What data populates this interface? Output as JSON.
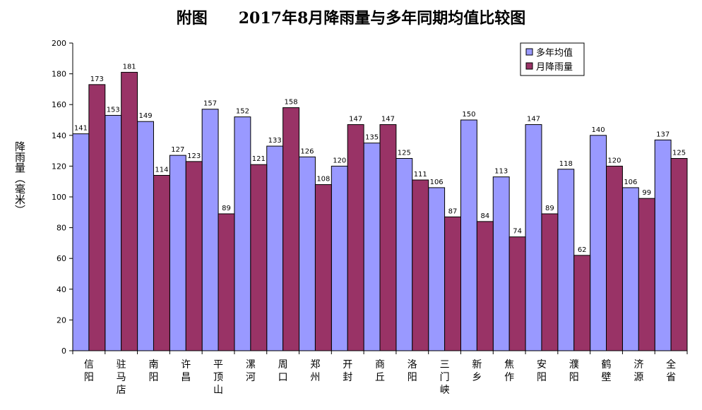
{
  "title": "附图　　2017年8月降雨量与多年同期均值比较图",
  "ylabel": "降雨量（毫米）",
  "legend": [
    "多年均值",
    "月降雨量"
  ],
  "colors": {
    "avg": "#9999ff",
    "month": "#993366",
    "bar_stroke": "#000000"
  },
  "chart_data": {
    "type": "bar",
    "title": "附图　　2017年8月降雨量与多年同期均值比较图",
    "ylabel": "降雨量（毫米）",
    "xlabel": "",
    "ylim": [
      0,
      200
    ],
    "yticks": [
      0,
      20,
      40,
      60,
      80,
      100,
      120,
      140,
      160,
      180,
      200
    ],
    "grid": false,
    "legend_position": "top-right",
    "categories": [
      "信阳",
      "驻马店",
      "南阳",
      "许昌",
      "平顶山",
      "漯河",
      "周口",
      "郑州",
      "开封",
      "商丘",
      "洛阳",
      "三门峡",
      "新乡",
      "焦作",
      "安阳",
      "濮阳",
      "鹤壁",
      "济源",
      "全省"
    ],
    "series": [
      {
        "name": "多年均值",
        "color": "#9999ff",
        "values": [
          141,
          153,
          149,
          127,
          157,
          152,
          133,
          126,
          120,
          135,
          125,
          106,
          150,
          113,
          147,
          118,
          140,
          106,
          137
        ]
      },
      {
        "name": "月降雨量",
        "color": "#993366",
        "values": [
          173,
          181,
          114,
          123,
          89,
          121,
          158,
          108,
          147,
          147,
          111,
          87,
          84,
          74,
          89,
          62,
          120,
          99,
          125
        ]
      }
    ]
  }
}
